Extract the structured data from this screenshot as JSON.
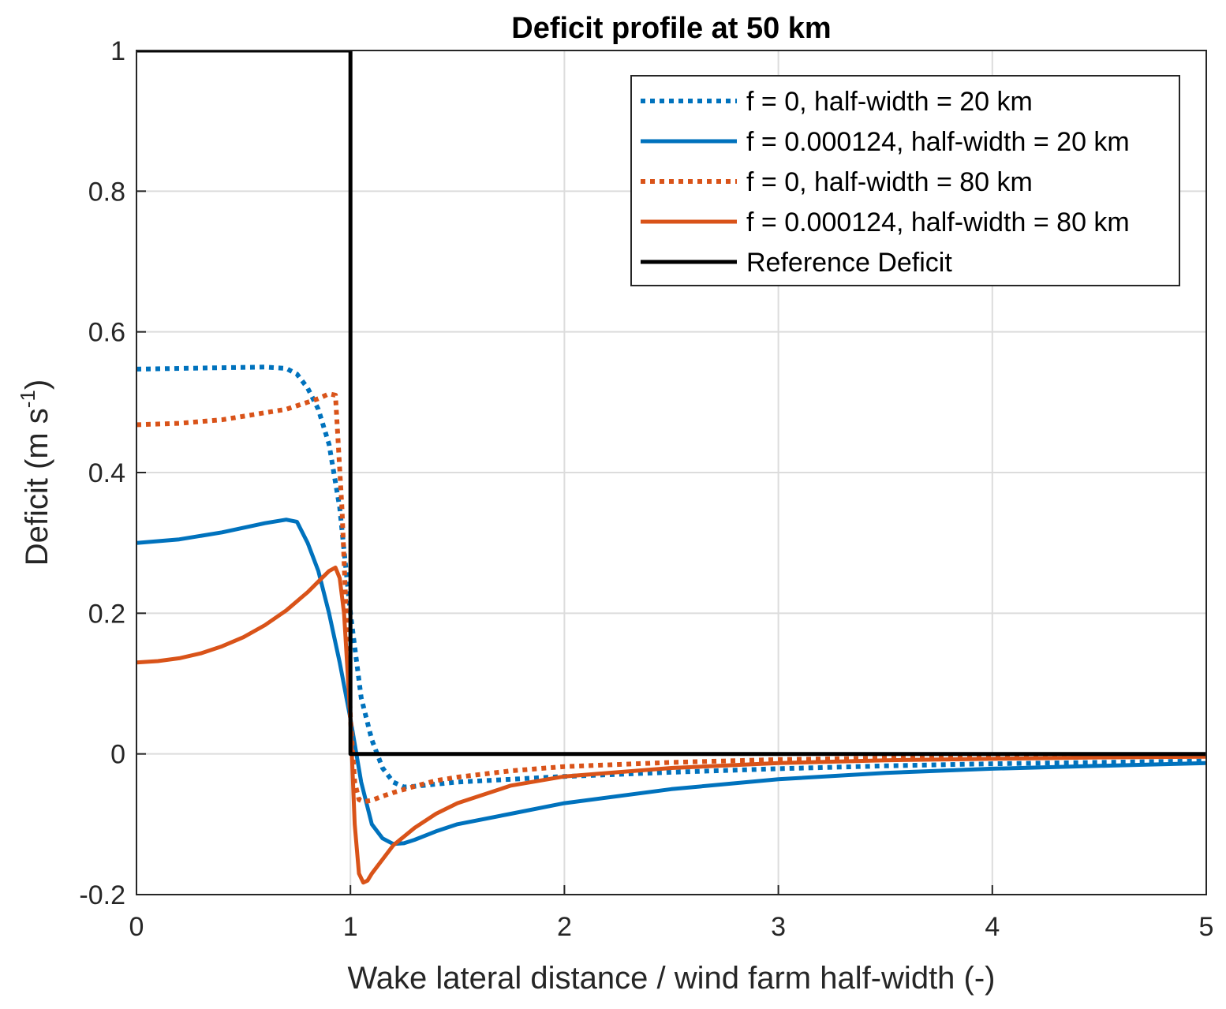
{
  "chart_data": {
    "type": "line",
    "title": "Deficit profile at 50 km",
    "xlabel": "Wake lateral distance / wind farm half-width (-)",
    "ylabel_main": "Deficit (m s",
    "ylabel_sup": "-1",
    "ylabel_close": ")",
    "xlim": [
      0,
      5
    ],
    "ylim": [
      -0.2,
      1
    ],
    "xticks": [
      0,
      1,
      2,
      3,
      4,
      5
    ],
    "xtick_labels": [
      "0",
      "1",
      "2",
      "3",
      "4",
      "5"
    ],
    "yticks": [
      -0.2,
      0,
      0.2,
      0.4,
      0.6,
      0.8,
      1
    ],
    "ytick_labels": [
      "-0.2",
      "0",
      "0.2",
      "0.4",
      "0.6",
      "0.8",
      "1"
    ],
    "grid": true,
    "legend_position": "top-right",
    "series": [
      {
        "name": "f = 0, half-width = 20 km",
        "color": "#0072BD",
        "style": "dotted",
        "x": [
          0,
          0.2,
          0.4,
          0.6,
          0.7,
          0.75,
          0.8,
          0.85,
          0.9,
          0.95,
          1.0,
          1.05,
          1.1,
          1.15,
          1.2,
          1.25,
          1.3,
          1.4,
          1.5,
          1.75,
          2.0,
          2.5,
          3.0,
          3.5,
          4.0,
          4.5,
          5.0
        ],
        "y": [
          0.547,
          0.548,
          0.549,
          0.55,
          0.548,
          0.54,
          0.52,
          0.49,
          0.44,
          0.35,
          0.2,
          0.08,
          0.02,
          -0.02,
          -0.04,
          -0.047,
          -0.046,
          -0.043,
          -0.04,
          -0.036,
          -0.032,
          -0.026,
          -0.021,
          -0.017,
          -0.014,
          -0.012,
          -0.01
        ]
      },
      {
        "name": "f = 0.000124, half-width = 20 km",
        "color": "#0072BD",
        "style": "solid",
        "x": [
          0,
          0.2,
          0.4,
          0.6,
          0.7,
          0.75,
          0.8,
          0.85,
          0.9,
          0.95,
          1.0,
          1.05,
          1.1,
          1.15,
          1.2,
          1.25,
          1.3,
          1.4,
          1.5,
          1.75,
          2.0,
          2.5,
          3.0,
          3.5,
          4.0,
          4.5,
          5.0
        ],
        "y": [
          0.3,
          0.305,
          0.315,
          0.328,
          0.333,
          0.33,
          0.3,
          0.26,
          0.2,
          0.13,
          0.05,
          -0.04,
          -0.1,
          -0.12,
          -0.128,
          -0.127,
          -0.122,
          -0.11,
          -0.1,
          -0.085,
          -0.07,
          -0.05,
          -0.036,
          -0.027,
          -0.021,
          -0.017,
          -0.013
        ]
      },
      {
        "name": "f = 0, half-width = 80 km",
        "color": "#D95319",
        "style": "dotted",
        "x": [
          0,
          0.2,
          0.4,
          0.6,
          0.7,
          0.8,
          0.85,
          0.9,
          0.93,
          0.96,
          1.0,
          1.02,
          1.04,
          1.06,
          1.1,
          1.15,
          1.2,
          1.3,
          1.4,
          1.5,
          1.75,
          2.0,
          2.5,
          3.0,
          3.5,
          4.0,
          4.5,
          5.0
        ],
        "y": [
          0.468,
          0.47,
          0.475,
          0.485,
          0.49,
          0.5,
          0.505,
          0.512,
          0.51,
          0.35,
          0.05,
          -0.04,
          -0.065,
          -0.068,
          -0.066,
          -0.06,
          -0.055,
          -0.046,
          -0.038,
          -0.033,
          -0.024,
          -0.018,
          -0.012,
          -0.008,
          -0.006,
          -0.005,
          -0.004,
          -0.003
        ]
      },
      {
        "name": "f = 0.000124, half-width = 80 km",
        "color": "#D95319",
        "style": "solid",
        "x": [
          0,
          0.1,
          0.2,
          0.3,
          0.4,
          0.5,
          0.6,
          0.7,
          0.8,
          0.85,
          0.9,
          0.93,
          0.95,
          0.97,
          1.0,
          1.02,
          1.04,
          1.06,
          1.08,
          1.1,
          1.15,
          1.2,
          1.3,
          1.4,
          1.5,
          1.75,
          2.0,
          2.5,
          3.0,
          3.5,
          4.0,
          4.5,
          5.0
        ],
        "y": [
          0.13,
          0.132,
          0.136,
          0.143,
          0.153,
          0.166,
          0.183,
          0.204,
          0.23,
          0.245,
          0.26,
          0.265,
          0.25,
          0.2,
          0.05,
          -0.1,
          -0.17,
          -0.183,
          -0.18,
          -0.17,
          -0.15,
          -0.13,
          -0.105,
          -0.085,
          -0.07,
          -0.045,
          -0.032,
          -0.02,
          -0.013,
          -0.009,
          -0.007,
          -0.005,
          -0.004
        ]
      },
      {
        "name": "Reference Deficit",
        "color": "#000000",
        "style": "solid",
        "x": [
          0,
          1,
          1,
          5
        ],
        "y": [
          1,
          1,
          0,
          0
        ]
      }
    ]
  }
}
